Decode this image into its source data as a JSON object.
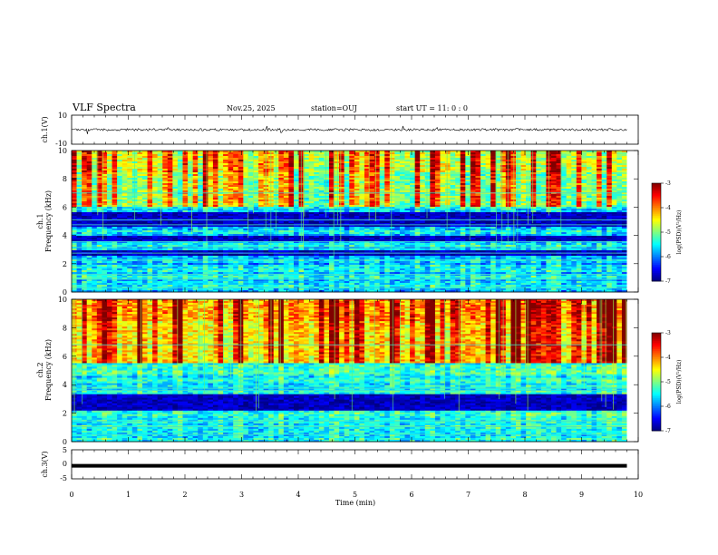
{
  "header": {
    "title": "VLF Spectra",
    "date": "Nov.25, 2025",
    "station": "station=OUJ",
    "start": "start UT =  11: 0  : 0"
  },
  "chart_data": [
    {
      "type": "line",
      "panel": "ch1-waveform",
      "ylabel": "ch.1(V)",
      "ylim": [
        -10,
        10
      ],
      "yticks": [
        10,
        -10
      ],
      "ytick_labels": [
        "10",
        "-10"
      ],
      "baseline_value": 0,
      "spikes": [
        {
          "t": 0.28,
          "v": -3
        },
        {
          "t": 1.7,
          "v": 1.5
        },
        {
          "t": 3.45,
          "v": 2.5
        },
        {
          "t": 3.7,
          "v": -2
        },
        {
          "t": 5.85,
          "v": 2.5
        },
        {
          "t": 6.45,
          "v": 1.5
        }
      ]
    },
    {
      "type": "heatmap",
      "panel": "ch1-spectrogram",
      "ylabel": "ch.1\nFrequency (kHz)",
      "ylim": [
        0,
        10
      ],
      "xlim": [
        0,
        9.8
      ],
      "yticks": [
        0,
        2,
        4,
        6,
        8,
        10
      ],
      "ytick_labels": [
        "0",
        "2",
        "4",
        "6",
        "8",
        "10"
      ],
      "colorbar": {
        "label": "log(PSD)(V²/Hz)",
        "range": [
          -7,
          -3
        ],
        "ticks": [
          "-3",
          "-4",
          "-5",
          "-6",
          "-7"
        ]
      },
      "dark_bands_khz": [
        [
          4.6,
          5.6
        ],
        [
          3.6,
          4.0
        ],
        [
          2.6,
          3.0
        ]
      ],
      "tone_lines_khz": [
        7.0,
        5.1,
        4.75,
        3.55,
        3.15,
        2.75,
        2.25,
        1.25,
        0.9,
        0.3
      ],
      "hf_active_from_khz": 6.0,
      "mean_log_psd_low": -5.8,
      "mean_log_psd_high": -4.6
    },
    {
      "type": "heatmap",
      "panel": "ch2-spectrogram",
      "ylabel": "ch.2\nFrequency (kHz)",
      "ylim": [
        0,
        10
      ],
      "xlim": [
        0,
        9.8
      ],
      "yticks": [
        0,
        2,
        4,
        6,
        8,
        10
      ],
      "ytick_labels": [
        "0",
        "2",
        "4",
        "6",
        "8",
        "10"
      ],
      "colorbar": {
        "label": "log(PSD)(V²/Hz)",
        "range": [
          -7,
          -3
        ],
        "ticks": [
          "-3",
          "-4",
          "-5",
          "-6",
          "-7"
        ]
      },
      "dark_bands_khz": [
        [
          2.2,
          2.9
        ],
        [
          3.0,
          3.3
        ]
      ],
      "tone_lines_khz": [
        6.8,
        3.75,
        3.6,
        1.45,
        1.05,
        0.5
      ],
      "hf_active_from_khz": 5.5,
      "mean_log_psd_low": -5.6,
      "mean_log_psd_high": -4.0
    },
    {
      "type": "line",
      "panel": "ch3-waveform",
      "ylabel": "ch.3(V)",
      "ylim": [
        -5,
        5
      ],
      "yticks": [
        5,
        0,
        -5
      ],
      "ytick_labels": [
        "5",
        "0",
        "-5"
      ],
      "baseline_value": -0.5
    }
  ],
  "x_axis": {
    "label": "Time (min)",
    "range": [
      0,
      10
    ],
    "ticks": [
      "0",
      "1",
      "2",
      "3",
      "4",
      "5",
      "6",
      "7",
      "8",
      "9",
      "10"
    ]
  }
}
